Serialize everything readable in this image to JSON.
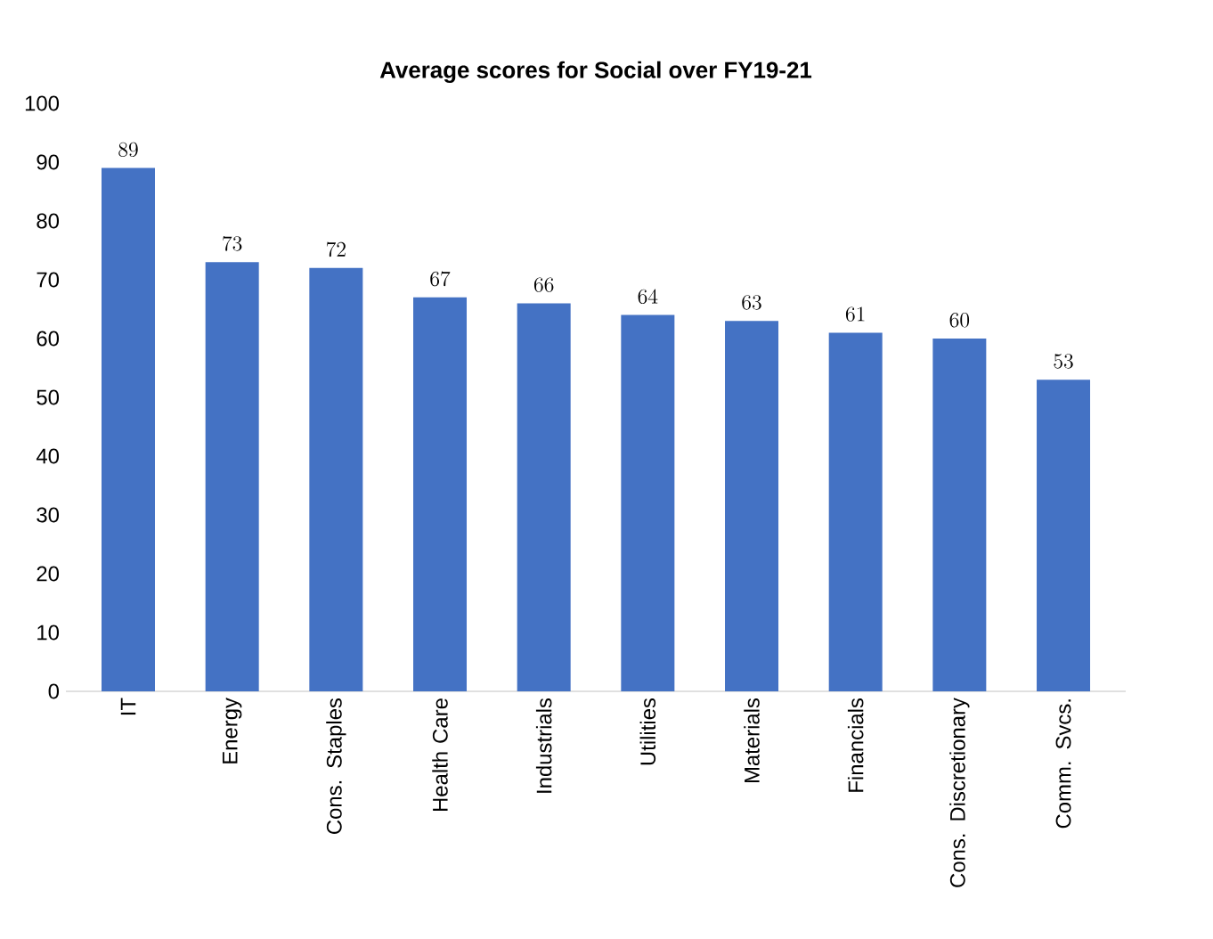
{
  "chart_data": {
    "type": "bar",
    "title": "Average scores for Social over FY19-21",
    "categories": [
      "IT",
      "Energy",
      "Cons. Staples",
      "Health Care",
      "Industrials",
      "Utilities",
      "Materials",
      "Financials",
      "Cons. Discretionary",
      "Comm. Svcs."
    ],
    "values": [
      89,
      73,
      72,
      67,
      66,
      64,
      63,
      61,
      60,
      53
    ],
    "color": "#4472c4",
    "ylim": [
      0,
      100
    ],
    "yticks": [
      0,
      10,
      20,
      30,
      40,
      50,
      60,
      70,
      80,
      90,
      100
    ],
    "data_labels": true
  }
}
